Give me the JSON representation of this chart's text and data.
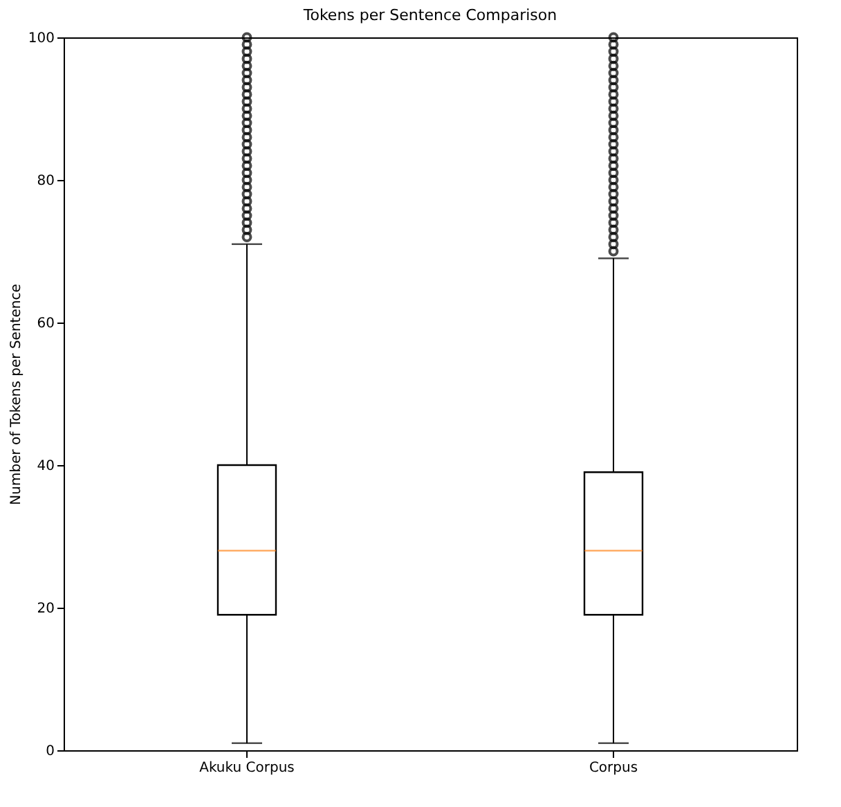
{
  "chart_data": {
    "type": "box",
    "title": "Tokens per Sentence Comparison",
    "ylabel": "Number of Tokens per Sentence",
    "categories": [
      "Akuku Corpus",
      "Corpus"
    ],
    "boxes": [
      {
        "low": 1,
        "q1": 19,
        "median": 28,
        "q3": 40,
        "high": 71,
        "outliers": [
          72,
          73,
          74,
          75,
          76,
          77,
          78,
          79,
          80,
          81,
          82,
          83,
          84,
          85,
          86,
          87,
          88,
          89,
          90,
          91,
          92,
          93,
          94,
          95,
          96,
          97,
          98,
          99,
          100
        ]
      },
      {
        "low": 1,
        "q1": 19,
        "median": 28,
        "q3": 39,
        "high": 69,
        "outliers": [
          70,
          71,
          72,
          73,
          74,
          75,
          76,
          77,
          78,
          79,
          80,
          81,
          82,
          83,
          84,
          85,
          86,
          87,
          88,
          89,
          90,
          91,
          92,
          93,
          94,
          95,
          96,
          97,
          98,
          99,
          100
        ]
      }
    ],
    "color": "#000000",
    "ylim": [
      0,
      100
    ],
    "yticks": [
      0,
      20,
      40,
      60,
      80,
      100
    ],
    "grid": false,
    "marker": "circle"
  }
}
